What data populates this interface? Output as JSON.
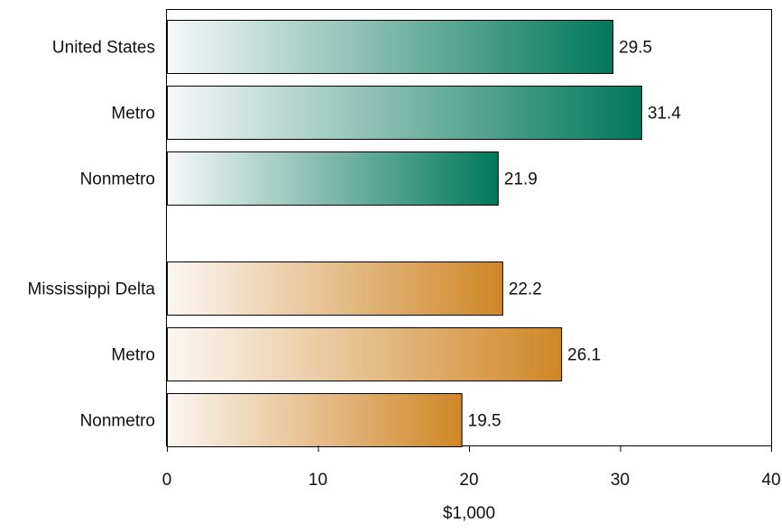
{
  "chart_data": {
    "type": "bar",
    "orientation": "horizontal",
    "title": "",
    "xlabel": "$1,000",
    "ylabel": "",
    "xlim": [
      0,
      40
    ],
    "xticks": [
      "0",
      "10",
      "20",
      "30",
      "40"
    ],
    "grid": false,
    "groups": [
      {
        "color_start": "#f7f8f9",
        "color_end": "#00785a",
        "bars": [
          {
            "category": "United States",
            "value": 29.5,
            "value_label": "29.5"
          },
          {
            "category": "Metro",
            "value": 31.4,
            "value_label": "31.4"
          },
          {
            "category": "Nonmetro",
            "value": 21.9,
            "value_label": "21.9"
          }
        ]
      },
      {
        "color_start": "#fbf7f3",
        "color_end": "#d08625",
        "bars": [
          {
            "category": "Mississippi Delta",
            "value": 22.2,
            "value_label": "22.2"
          },
          {
            "category": "Metro",
            "value": 26.1,
            "value_label": "26.1"
          },
          {
            "category": "Nonmetro",
            "value": 19.5,
            "value_label": "19.5"
          }
        ]
      }
    ]
  }
}
